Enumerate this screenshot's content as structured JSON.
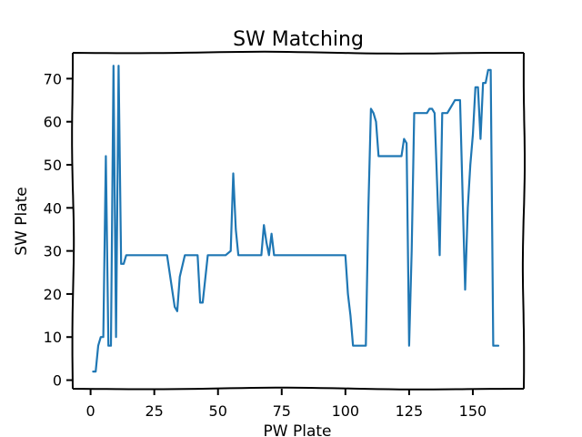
{
  "chart_data": {
    "type": "line",
    "title": "SW Matching",
    "xlabel": "PW Plate",
    "ylabel": "SW Plate",
    "xlim": [
      -7,
      170
    ],
    "ylim": [
      -2,
      76
    ],
    "xticks": [
      0,
      25,
      50,
      75,
      100,
      125,
      150
    ],
    "yticks": [
      0,
      10,
      20,
      30,
      40,
      50,
      60,
      70
    ],
    "grid": false,
    "line_color": "#1f77b4",
    "series": [
      {
        "x": [
          1,
          2,
          3,
          4,
          5,
          6,
          7,
          8,
          9,
          10,
          11,
          12,
          13,
          14,
          16,
          20,
          25,
          30,
          33,
          34,
          35,
          37,
          40,
          42,
          43,
          44,
          46,
          50,
          53,
          55,
          56,
          57,
          58,
          60,
          65,
          67,
          68,
          69,
          70,
          71,
          72,
          75,
          80,
          85,
          90,
          95,
          100,
          101,
          102,
          103,
          104,
          108,
          109,
          110,
          111,
          112,
          113,
          115,
          118,
          122,
          123,
          124,
          125,
          126,
          127,
          128,
          129,
          130,
          131,
          132,
          133,
          134,
          135,
          137,
          138,
          140,
          141,
          142,
          143,
          144,
          145,
          147,
          148,
          149,
          150,
          151,
          152,
          153,
          154,
          155,
          156,
          157,
          158,
          159,
          160
        ],
        "y": [
          2,
          2,
          8,
          10,
          10,
          52,
          8,
          8,
          73,
          10,
          73,
          27,
          27,
          29,
          29,
          29,
          29,
          29,
          17,
          16,
          24,
          29,
          29,
          29,
          18,
          18,
          29,
          29,
          29,
          30,
          48,
          35,
          29,
          29,
          29,
          29,
          36,
          32,
          29,
          34,
          29,
          29,
          29,
          29,
          29,
          29,
          29,
          20,
          15,
          8,
          8,
          8,
          40,
          63,
          62,
          60,
          52,
          52,
          52,
          52,
          56,
          55,
          8,
          30,
          62,
          62,
          62,
          62,
          62,
          62,
          63,
          63,
          62,
          29,
          62,
          62,
          63,
          64,
          65,
          65,
          65,
          21,
          40,
          50,
          57,
          68,
          68,
          56,
          69,
          69,
          72,
          72,
          8,
          8,
          8
        ]
      }
    ]
  }
}
